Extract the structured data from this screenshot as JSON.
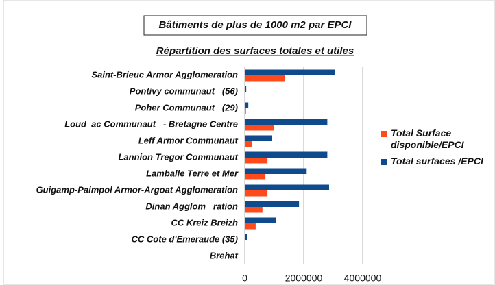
{
  "chart_data": {
    "type": "barh",
    "title": "Bâtiments de plus de 1000 m2 par EPCI",
    "subtitle": "Répartition des surfaces totales et utiles",
    "categories": [
      "Saint-Brieuc Armor Agglomeration",
      "Pontivy communaut   (56)",
      "Poher Communaut   (29)",
      "Loud  ac Communaut   - Bretagne Centre",
      "Leff Armor Communaut",
      "Lannion Tregor Communaut",
      "Lamballe Terre et Mer",
      "Guigamp-Paimpol Armor-Argoat Agglomeration",
      "Dinan Agglom   ration",
      "CC Kreiz Breizh",
      "CC Cote d'Emeraude (35)",
      "Brehat"
    ],
    "series": [
      {
        "name": "Total Surface disponible/EPCI",
        "color": "#ff4a1c",
        "values": [
          1350000,
          10000,
          40000,
          1000000,
          250000,
          770000,
          700000,
          770000,
          600000,
          370000,
          20000,
          0
        ]
      },
      {
        "name": "Total surfaces /EPCI",
        "color": "#0e4a8c",
        "values": [
          3050000,
          50000,
          120000,
          2800000,
          930000,
          2800000,
          2100000,
          2860000,
          1840000,
          1050000,
          70000,
          0
        ]
      }
    ],
    "xlim": [
      0,
      4000000
    ],
    "xticks": [
      0,
      2000000,
      4000000
    ],
    "grid": true,
    "legend": "right"
  }
}
